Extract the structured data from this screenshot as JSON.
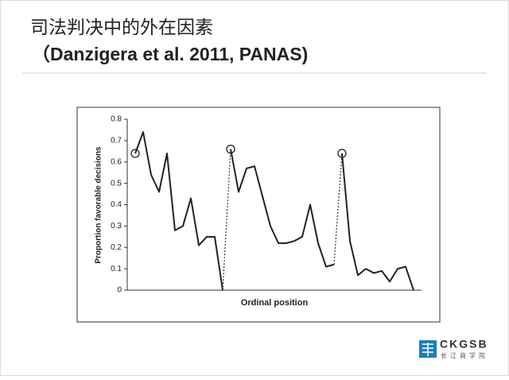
{
  "title": "司法判决中的外在因素",
  "subtitle": "（Danzigera et al. 2011, PANAS)",
  "logo": {
    "text": "CKGSB",
    "subtext": "长江商学院"
  },
  "chart_data": {
    "type": "line",
    "ylabel": "Proportion favorable decisions",
    "xlabel": "Ordinal position",
    "xlim": [
      0,
      37
    ],
    "ylim": [
      0,
      0.8
    ],
    "yticks": [
      0,
      0.1,
      0.2,
      0.3,
      0.4,
      0.5,
      0.6,
      0.7,
      0.8
    ],
    "series": [
      {
        "color": "#222222",
        "x": [
          1,
          2,
          3,
          4,
          5,
          6,
          7,
          8,
          9,
          10,
          11,
          12
        ],
        "values": [
          0.64,
          0.74,
          0.54,
          0.46,
          0.64,
          0.28,
          0.3,
          0.43,
          0.21,
          0.25,
          0.25,
          0
        ]
      },
      {
        "color": "#222222",
        "x": [
          13,
          14,
          15,
          16,
          17,
          18,
          19,
          20,
          21,
          22,
          23,
          24,
          25,
          26
        ],
        "values": [
          0.66,
          0.46,
          0.57,
          0.58,
          0.44,
          0.3,
          0.22,
          0.22,
          0.23,
          0.25,
          0.4,
          0.22,
          0.11,
          0.12
        ]
      },
      {
        "color": "#222222",
        "x": [
          27,
          28,
          29,
          30,
          31,
          32,
          33,
          34,
          35,
          36
        ],
        "values": [
          0.64,
          0.23,
          0.07,
          0.1,
          0.08,
          0.09,
          0.04,
          0.1,
          0.11,
          0
        ]
      }
    ]
  }
}
